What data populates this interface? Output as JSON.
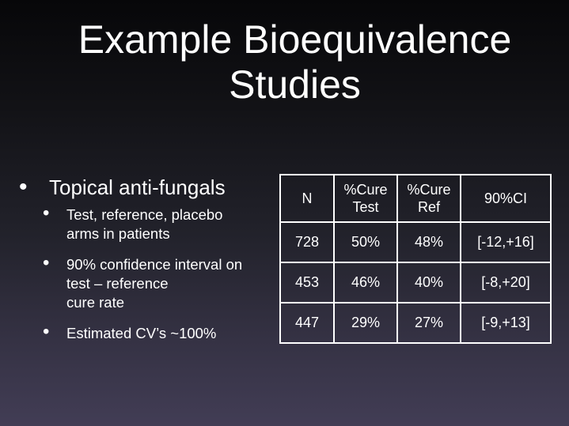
{
  "title": {
    "line1": "Example Bioequivalence",
    "line2": "Studies"
  },
  "bullets": {
    "main": "Topical anti-fungals",
    "sub": [
      {
        "lines": [
          "Test, reference, placebo",
          "arms in patients"
        ]
      },
      {
        "lines": [
          "90% confidence interval on",
          "test – reference",
          "cure rate"
        ]
      },
      {
        "lines": [
          "Estimated CV’s ~100%"
        ]
      }
    ]
  },
  "table": {
    "headers": [
      {
        "lines": [
          "N"
        ]
      },
      {
        "lines": [
          "%Cure",
          "Test"
        ]
      },
      {
        "lines": [
          "%Cure",
          "Ref"
        ]
      },
      {
        "lines": [
          "90%CI"
        ]
      }
    ],
    "rows": [
      [
        "728",
        "50%",
        "48%",
        "[-12,+16]"
      ],
      [
        "453",
        "46%",
        "40%",
        "[-8,+20]"
      ],
      [
        "447",
        "29%",
        "27%",
        "[-9,+13]"
      ]
    ]
  },
  "colors": {
    "text": "#ffffff",
    "background_top": "#070709",
    "background_bottom": "#423d55"
  }
}
